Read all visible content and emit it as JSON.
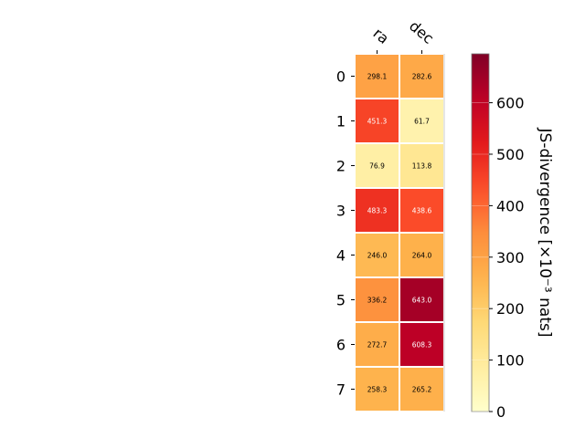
{
  "chart_data": {
    "type": "heatmap",
    "title": "",
    "columns": [
      "ra",
      "dec"
    ],
    "rows": [
      "0",
      "1",
      "2",
      "3",
      "4",
      "5",
      "6",
      "7"
    ],
    "values": [
      [
        298.1,
        282.6
      ],
      [
        451.3,
        61.7
      ],
      [
        76.9,
        113.8
      ],
      [
        483.3,
        438.6
      ],
      [
        246.0,
        264.0
      ],
      [
        336.2,
        643.0
      ],
      [
        272.7,
        608.3
      ],
      [
        258.3,
        265.2
      ]
    ],
    "value_labels": [
      [
        "298.1",
        "282.6"
      ],
      [
        "451.3",
        "61.7"
      ],
      [
        "76.9",
        "113.8"
      ],
      [
        "483.3",
        "438.6"
      ],
      [
        "246.0",
        "264.0"
      ],
      [
        "336.2",
        "643.0"
      ],
      [
        "272.7",
        "608.3"
      ],
      [
        "258.3",
        "265.2"
      ]
    ],
    "colorbar": {
      "label": "JS-divergence [×10⁻³ nats]",
      "range": [
        0,
        695
      ],
      "ticks": [
        0,
        100,
        200,
        300,
        400,
        500,
        600
      ],
      "tick_labels": [
        "0",
        "100",
        "200",
        "300",
        "400",
        "500",
        "600"
      ],
      "colormap": "YlOrRd"
    }
  }
}
